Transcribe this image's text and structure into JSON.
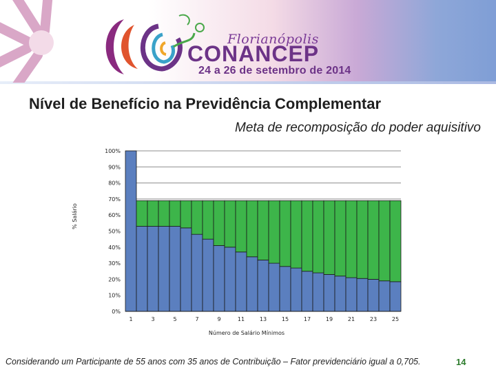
{
  "header": {
    "city": "Florianópolis",
    "event_name": "CONANCEP",
    "event_dates": "24 a 26 de setembro de 2014"
  },
  "slide": {
    "title": "Nível de Benefício na Previdência Complementar",
    "subtitle": "Meta de recomposição do poder aquisitivo",
    "footnote": "Considerando um Participante de 55 anos com 35 anos de Contribuição – Fator previdenciário igual a 0,705.",
    "page_number": "14"
  },
  "colors": {
    "blue_bar": "#5b7fbf",
    "green_bar": "#3db54a",
    "bar_border": "#1a1a1a"
  },
  "chart_data": {
    "type": "bar",
    "stacked": true,
    "xlabel": "Número de Salário Mínimos",
    "ylabel": "% Salário",
    "ylim": [
      0,
      100
    ],
    "y_ticks": [
      "0%",
      "10%",
      "20%",
      "30%",
      "40%",
      "50%",
      "60%",
      "70%",
      "80%",
      "90%",
      "100%"
    ],
    "x_tick_labels": [
      "1",
      "3",
      "5",
      "7",
      "9",
      "11",
      "13",
      "15",
      "17",
      "19",
      "21",
      "23",
      "25"
    ],
    "categories": [
      1,
      2,
      3,
      4,
      5,
      6,
      7,
      8,
      9,
      10,
      11,
      12,
      13,
      14,
      15,
      16,
      17,
      18,
      19,
      20,
      21,
      22,
      23,
      24,
      25
    ],
    "series": [
      {
        "values": [
          100,
          53,
          53,
          53,
          53,
          52,
          48,
          45,
          41,
          40,
          37,
          34,
          32,
          30,
          28,
          27,
          25,
          24,
          23,
          22,
          21,
          20.5,
          20,
          19,
          18.5
        ]
      },
      {
        "values": [
          0,
          16,
          16,
          16,
          16,
          17,
          21,
          24,
          28,
          29,
          32,
          35,
          37,
          39,
          41,
          42,
          44,
          45,
          46,
          47,
          48,
          48.5,
          49,
          50,
          50.5
        ]
      }
    ],
    "grid": true
  }
}
